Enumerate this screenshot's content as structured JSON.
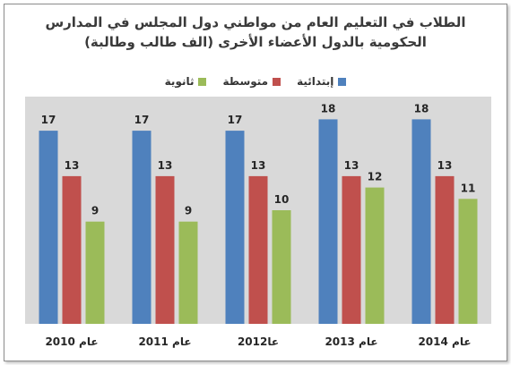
{
  "chart_data": {
    "type": "bar",
    "title_line1": "الطلاب في التعليم العام من مواطني دول المجلس في المدارس",
    "title_line2": "الحكومية بالدول الأعضاء الأخرى (الف طالب وطالبة)",
    "categories": [
      "عام 2010",
      "عام 2011",
      "عا2012",
      "عام 2013",
      "عام 2014"
    ],
    "series": [
      {
        "name": "إبتدائية",
        "color": "#4f81bd",
        "values": [
          17,
          17,
          17,
          18,
          18
        ]
      },
      {
        "name": "متوسطة",
        "color": "#c0504d",
        "values": [
          13,
          13,
          13,
          13,
          13
        ]
      },
      {
        "name": "ثانوية",
        "color": "#9bbb59",
        "values": [
          9,
          9,
          10,
          12,
          11
        ]
      }
    ],
    "ylim": [
      0,
      20
    ],
    "plot_background": "#d9d9d9",
    "grid": false,
    "legend_position": "top"
  }
}
